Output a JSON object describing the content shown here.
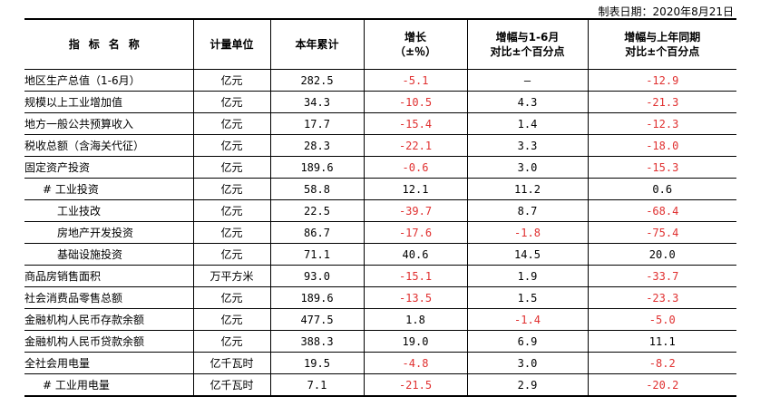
{
  "date_line": "制表日期：2020年8月21日",
  "headers": {
    "name": "指标名称",
    "unit": "计量单位",
    "ytd": "本年累计",
    "growth_line1": "增长",
    "growth_line2": "（±％）",
    "vs_h1_line1": "增幅与1-6月",
    "vs_h1_line2": "对比±个百分点",
    "vs_ly_line1": "增幅与上年同期",
    "vs_ly_line2": "对比±个百分点"
  },
  "negative_color": "#e03030",
  "rows": [
    {
      "name": "地区生产总值（1-6月）",
      "indent": 0,
      "unit": "亿元",
      "ytd": "282.5",
      "growth": "-5.1",
      "vs_h1": "—",
      "vs_ly": "-12.9"
    },
    {
      "name": "规模以上工业增加值",
      "indent": 0,
      "unit": "亿元",
      "ytd": "34.3",
      "growth": "-10.5",
      "vs_h1": "4.3",
      "vs_ly": "-21.3"
    },
    {
      "name": "地方一般公共预算收入",
      "indent": 0,
      "unit": "亿元",
      "ytd": "17.7",
      "growth": "-15.4",
      "vs_h1": "1.4",
      "vs_ly": "-12.3"
    },
    {
      "name": "税收总额（含海关代征）",
      "indent": 0,
      "unit": "亿元",
      "ytd": "28.3",
      "growth": "-22.1",
      "vs_h1": "3.3",
      "vs_ly": "-18.0"
    },
    {
      "name": "固定资产投资",
      "indent": 0,
      "unit": "亿元",
      "ytd": "189.6",
      "growth": "-0.6",
      "vs_h1": "3.0",
      "vs_ly": "-15.3"
    },
    {
      "name": "# 工业投资",
      "indent": 1,
      "unit": "亿元",
      "ytd": "58.8",
      "growth": "12.1",
      "vs_h1": "11.2",
      "vs_ly": "0.6"
    },
    {
      "name": "工业技改",
      "indent": 2,
      "unit": "亿元",
      "ytd": "22.5",
      "growth": "-39.7",
      "vs_h1": "8.7",
      "vs_ly": "-68.4"
    },
    {
      "name": "房地产开发投资",
      "indent": 2,
      "unit": "亿元",
      "ytd": "86.7",
      "growth": "-17.6",
      "vs_h1": "-1.8",
      "vs_ly": "-75.4"
    },
    {
      "name": "基础设施投资",
      "indent": 2,
      "unit": "亿元",
      "ytd": "71.1",
      "growth": "40.6",
      "vs_h1": "14.5",
      "vs_ly": "20.0"
    },
    {
      "name": "商品房销售面积",
      "indent": 0,
      "unit": "万平方米",
      "ytd": "93.0",
      "growth": "-15.1",
      "vs_h1": "1.9",
      "vs_ly": "-33.7"
    },
    {
      "name": "社会消费品零售总额",
      "indent": 0,
      "unit": "亿元",
      "ytd": "189.6",
      "growth": "-13.5",
      "vs_h1": "1.5",
      "vs_ly": "-23.3"
    },
    {
      "name": "金融机构人民币存款余额",
      "indent": 0,
      "unit": "亿元",
      "ytd": "477.5",
      "growth": "1.8",
      "vs_h1": "-1.4",
      "vs_ly": "-5.0"
    },
    {
      "name": "金融机构人民币贷款余额",
      "indent": 0,
      "unit": "亿元",
      "ytd": "388.3",
      "growth": "19.0",
      "vs_h1": "6.9",
      "vs_ly": "11.1"
    },
    {
      "name": "全社会用电量",
      "indent": 0,
      "unit": "亿千瓦时",
      "ytd": "19.5",
      "growth": "-4.8",
      "vs_h1": "3.0",
      "vs_ly": "-8.2"
    },
    {
      "name": "# 工业用电量",
      "indent": 1,
      "unit": "亿千瓦时",
      "ytd": "7.1",
      "growth": "-21.5",
      "vs_h1": "2.9",
      "vs_ly": "-20.2"
    }
  ]
}
